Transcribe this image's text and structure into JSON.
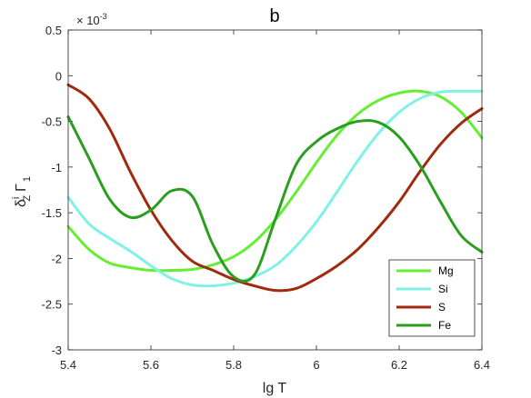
{
  "chart_data": {
    "type": "line",
    "title": "b",
    "xlabel": "lg T",
    "ylabel_parts": {
      "base": "δ",
      "sup": "i",
      "sub": "Z",
      "rest": "Γ",
      "rest_sub": "1"
    },
    "exponent_label": "× 10",
    "exponent_power": "-3",
    "xlim": [
      5.4,
      6.4
    ],
    "ylim": [
      -3,
      0.5
    ],
    "x_ticks": [
      "5.4",
      "5.6",
      "5.8",
      "6",
      "6.2",
      "6.4"
    ],
    "y_ticks": [
      "0.5",
      "0",
      "-0.5",
      "-1",
      "-1.5",
      "-2",
      "-2.5",
      "-3"
    ],
    "grid": false,
    "legend_position": "bottom-right",
    "series": [
      {
        "name": "Mg",
        "color": "#66ee33",
        "x": [
          5.4,
          5.45,
          5.5,
          5.55,
          5.6,
          5.65,
          5.7,
          5.75,
          5.8,
          5.85,
          5.9,
          5.95,
          6.0,
          6.05,
          6.1,
          6.15,
          6.2,
          6.25,
          6.3,
          6.35,
          6.4
        ],
        "y": [
          -1.65,
          -1.9,
          -2.05,
          -2.1,
          -2.13,
          -2.13,
          -2.12,
          -2.07,
          -1.98,
          -1.82,
          -1.58,
          -1.28,
          -0.95,
          -0.65,
          -0.42,
          -0.27,
          -0.19,
          -0.17,
          -0.23,
          -0.4,
          -0.68
        ]
      },
      {
        "name": "Si",
        "color": "#80f2e3",
        "x": [
          5.4,
          5.45,
          5.5,
          5.55,
          5.6,
          5.65,
          5.7,
          5.75,
          5.8,
          5.85,
          5.9,
          5.95,
          6.0,
          6.05,
          6.1,
          6.15,
          6.2,
          6.25,
          6.3,
          6.35,
          6.4
        ],
        "y": [
          -1.33,
          -1.62,
          -1.78,
          -1.92,
          -2.08,
          -2.22,
          -2.29,
          -2.3,
          -2.27,
          -2.2,
          -2.08,
          -1.87,
          -1.6,
          -1.27,
          -0.93,
          -0.63,
          -0.4,
          -0.25,
          -0.18,
          -0.17,
          -0.17
        ]
      },
      {
        "name": "S",
        "color": "#a02a0e",
        "x": [
          5.4,
          5.45,
          5.5,
          5.55,
          5.6,
          5.65,
          5.7,
          5.75,
          5.8,
          5.85,
          5.9,
          5.95,
          6.0,
          6.05,
          6.1,
          6.15,
          6.2,
          6.25,
          6.3,
          6.35,
          6.4
        ],
        "y": [
          -0.1,
          -0.25,
          -0.58,
          -1.05,
          -1.47,
          -1.8,
          -2.03,
          -2.13,
          -2.23,
          -2.3,
          -2.35,
          -2.33,
          -2.22,
          -2.08,
          -1.9,
          -1.66,
          -1.38,
          -1.05,
          -0.75,
          -0.52,
          -0.36
        ]
      },
      {
        "name": "Fe",
        "color": "#2a9e1f",
        "x": [
          5.4,
          5.45,
          5.5,
          5.55,
          5.6,
          5.65,
          5.7,
          5.75,
          5.8,
          5.85,
          5.9,
          5.95,
          6.0,
          6.05,
          6.1,
          6.15,
          6.2,
          6.25,
          6.3,
          6.35,
          6.4
        ],
        "y": [
          -0.45,
          -0.9,
          -1.35,
          -1.55,
          -1.47,
          -1.26,
          -1.32,
          -1.85,
          -2.2,
          -2.18,
          -1.58,
          -0.98,
          -0.72,
          -0.58,
          -0.5,
          -0.51,
          -0.67,
          -0.98,
          -1.38,
          -1.75,
          -1.93
        ]
      }
    ]
  }
}
